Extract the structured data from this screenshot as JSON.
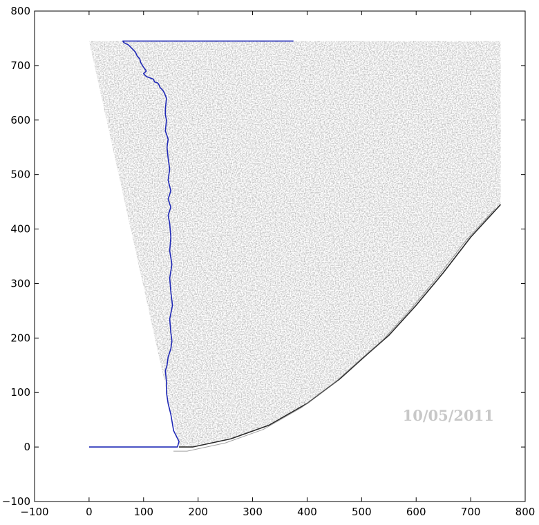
{
  "chart_data": {
    "type": "line",
    "title": "",
    "xlabel": "",
    "ylabel": "",
    "xlim": [
      -100,
      800
    ],
    "ylim": [
      800,
      -100
    ],
    "y_inverted": true,
    "grid": false,
    "x_ticks": [
      "−100",
      "0",
      "100",
      "200",
      "300",
      "400",
      "500",
      "600",
      "700",
      "800"
    ],
    "x_tick_values": [
      -100,
      0,
      100,
      200,
      300,
      400,
      500,
      600,
      700,
      800
    ],
    "y_ticks": [
      "−100",
      "0",
      "100",
      "200",
      "300",
      "400",
      "500",
      "600",
      "700",
      "800"
    ],
    "y_tick_values": [
      -100,
      0,
      100,
      200,
      300,
      400,
      500,
      600,
      700,
      800
    ],
    "background_image": {
      "description": "edge-filtered grayscale image of a curved specimen, rendered in light grey",
      "extent": {
        "x": [
          0,
          755
        ],
        "y": [
          0,
          745
        ]
      },
      "stamp_text": "10/05/2011",
      "stamp_data_position": [
        659,
        48
      ]
    },
    "boundary_curve": {
      "x": [
        0,
        162,
        165,
        155,
        150,
        145,
        142,
        142,
        140,
        143,
        145,
        150,
        152,
        150,
        148,
        153,
        150,
        148,
        152,
        148,
        150,
        148,
        145,
        150,
        145,
        150,
        145,
        148,
        145,
        143,
        145,
        140,
        142,
        140,
        140,
        141,
        142,
        138,
        135,
        130,
        128,
        126,
        120,
        118,
        110,
        105,
        100,
        105,
        98,
        95,
        93,
        88,
        85,
        80,
        75,
        72,
        68,
        64,
        62,
        63,
        375
      ],
      "y": [
        0,
        0,
        10,
        30,
        60,
        80,
        100,
        120,
        140,
        150,
        165,
        180,
        195,
        210,
        235,
        260,
        285,
        310,
        335,
        360,
        385,
        410,
        425,
        440,
        455,
        470,
        490,
        510,
        530,
        550,
        565,
        580,
        600,
        610,
        620,
        630,
        640,
        650,
        655,
        660,
        665,
        668,
        670,
        675,
        678,
        680,
        685,
        690,
        700,
        705,
        712,
        718,
        725,
        730,
        735,
        738,
        740,
        742,
        745,
        745,
        745
      ],
      "color": "#1f28b5"
    },
    "specimen_outline": {
      "x": [
        165,
        190,
        260,
        330,
        400,
        460,
        510,
        550,
        600,
        650,
        700,
        755
      ],
      "y": [
        0,
        0,
        15,
        40,
        80,
        125,
        170,
        205,
        260,
        320,
        385,
        445
      ],
      "color": "#2b2b2b"
    }
  }
}
